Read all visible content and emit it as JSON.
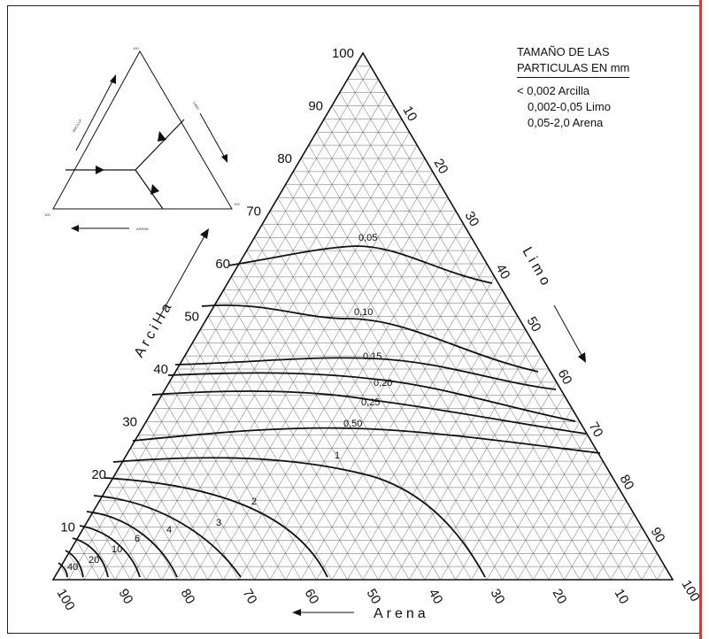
{
  "legend": {
    "title_line1": "TAMAÑO DE LAS",
    "title_line2": "PARTICULAS EN mm",
    "rows": [
      "< 0,002 Arcilla",
      "0,002-0,05 Limo",
      "0,05-2,0 Arena"
    ]
  },
  "axes": {
    "arcilla": "Arcilla",
    "limo": "Limo",
    "arena": "Arena",
    "left_ticks": [
      "10",
      "20",
      "30",
      "40",
      "50",
      "60",
      "70",
      "80",
      "90",
      "100"
    ],
    "right_ticks": [
      "10",
      "20",
      "30",
      "40",
      "50",
      "60",
      "70",
      "80",
      "90",
      "100"
    ],
    "bottom_ticks": [
      "100",
      "90",
      "80",
      "70",
      "60",
      "50",
      "40",
      "30",
      "20",
      "10"
    ]
  },
  "inset": {
    "arcilla": "ARCILLA",
    "limo": "LIMO",
    "arena": "ARENA",
    "top": "100",
    "left": "100",
    "right": "100"
  },
  "contours": [
    {
      "label": "0,05"
    },
    {
      "label": "0,10"
    },
    {
      "label": "0,15"
    },
    {
      "label": "0,20"
    },
    {
      "label": "0,25"
    },
    {
      "label": "0,50"
    },
    {
      "label": "1"
    },
    {
      "label": "2"
    },
    {
      "label": "3"
    },
    {
      "label": "4"
    },
    {
      "label": "6"
    },
    {
      "label": "10"
    },
    {
      "label": "20"
    },
    {
      "label": "40"
    }
  ]
}
